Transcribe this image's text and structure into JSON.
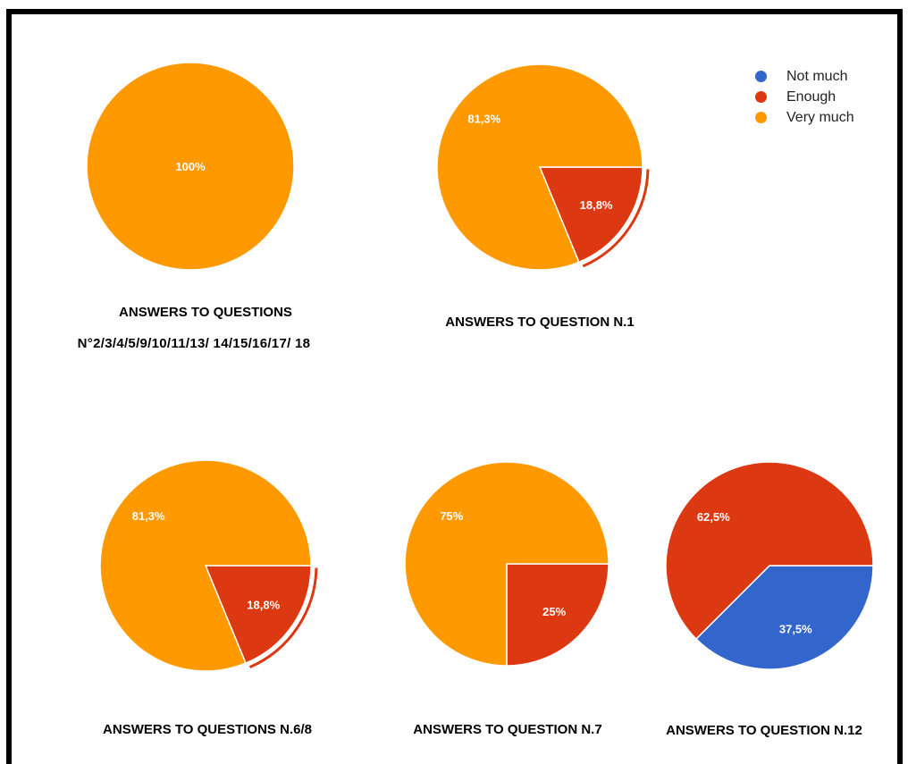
{
  "corner_mark": "",
  "colors": {
    "Not much": "#3366cc",
    "Enough": "#dc3912",
    "Very much": "#ff9900"
  },
  "legend": [
    "Not much",
    "Enough",
    "Very much"
  ],
  "chart_data": [
    {
      "type": "pie",
      "title": "ANSWERS TO QUESTIONS",
      "subtitle": "N°2/3/4/5/9/10/11/13/ 14/15/16/17/ 18",
      "slices": [
        {
          "label": "Very much",
          "value": 100,
          "text": "100%"
        }
      ]
    },
    {
      "type": "pie",
      "title": "ANSWERS TO QUESTION N.1",
      "slices": [
        {
          "label": "Enough",
          "value": 18.8,
          "text": "18,8%"
        },
        {
          "label": "Very much",
          "value": 81.3,
          "text": "81,3%"
        }
      ]
    },
    {
      "type": "pie",
      "title": "ANSWERS TO QUESTIONS N.6/8",
      "slices": [
        {
          "label": "Enough",
          "value": 18.8,
          "text": "18,8%"
        },
        {
          "label": "Very much",
          "value": 81.3,
          "text": "81,3%"
        }
      ]
    },
    {
      "type": "pie",
      "title": "ANSWERS TO QUESTION N.7",
      "slices": [
        {
          "label": "Enough",
          "value": 25,
          "text": "25%"
        },
        {
          "label": "Very much",
          "value": 75,
          "text": "75%"
        }
      ]
    },
    {
      "type": "pie",
      "title": "ANSWERS TO QUESTION N.12",
      "slices": [
        {
          "label": "Not much",
          "value": 37.5,
          "text": "37,5%"
        },
        {
          "label": "Enough",
          "value": 62.5,
          "text": "62,5%"
        }
      ]
    }
  ]
}
